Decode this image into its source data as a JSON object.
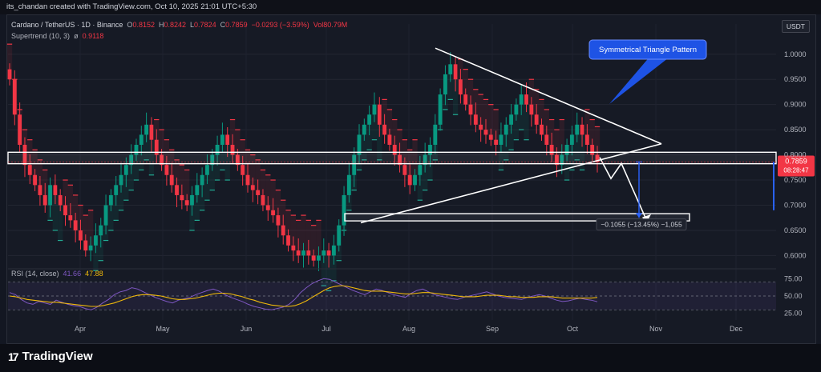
{
  "header": {
    "credit": "its_chandan created with TradingView.com, Oct 10, 2025 21:01 UTC+5:30"
  },
  "legend": {
    "symbol": "Cardano / TetherUS · 1D · Binance",
    "open_label": "O",
    "open": "0.8152",
    "high_label": "H",
    "high": "0.8242",
    "low_label": "L",
    "low": "0.7824",
    "close_label": "C",
    "close": "0.7859",
    "change": "−0.0293 (−3.59%)",
    "volume": "Vol80.79M",
    "supertrend_label": "Supertrend (10, 3)",
    "supertrend_sym": "ø",
    "supertrend_value": "0.9118"
  },
  "rsi_legend": {
    "label": "RSI (14, close)",
    "rsi": "41.66",
    "ma": "47.88"
  },
  "currency_badge": "USDT",
  "annotation": "Symmetrical Triangle Pattern",
  "measure_label": "−0.1055 (−13.45%) −1,055",
  "price_tag": {
    "price": "0.7859",
    "countdown": "08:28:47"
  },
  "footer": {
    "brand": "TradingView",
    "logo_glyph": "17"
  },
  "colors": {
    "up": "#089981",
    "down": "#f23645",
    "rsi": "#7e57c2",
    "rsi_ma": "#f0b90b",
    "bg": "#161a25",
    "accent": "#2962ff"
  },
  "chart_data": [
    {
      "type": "candlestick",
      "title": "Cardano / TetherUS · 1D · Binance",
      "y_ticks": [
        "1.0000",
        "0.9500",
        "0.9000",
        "0.8500",
        "0.8000",
        "0.7500",
        "0.7000",
        "0.6500",
        "0.6000"
      ],
      "ylim": [
        0.58,
        1.06
      ],
      "x_tick_labels": [
        "Apr",
        "May",
        "Jun",
        "Jul",
        "Aug",
        "Sep",
        "Oct",
        "Nov",
        "Dec"
      ],
      "grid": true,
      "closes_approx": [
        0.95,
        0.88,
        0.82,
        0.78,
        0.76,
        0.74,
        0.72,
        0.7,
        0.74,
        0.72,
        0.7,
        0.68,
        0.67,
        0.65,
        0.63,
        0.61,
        0.62,
        0.64,
        0.66,
        0.7,
        0.72,
        0.74,
        0.76,
        0.78,
        0.8,
        0.82,
        0.84,
        0.86,
        0.83,
        0.8,
        0.78,
        0.76,
        0.74,
        0.72,
        0.71,
        0.7,
        0.72,
        0.74,
        0.76,
        0.78,
        0.8,
        0.82,
        0.84,
        0.82,
        0.8,
        0.78,
        0.76,
        0.74,
        0.73,
        0.72,
        0.7,
        0.69,
        0.68,
        0.66,
        0.64,
        0.62,
        0.61,
        0.6,
        0.61,
        0.6,
        0.59,
        0.6,
        0.61,
        0.6,
        0.62,
        0.66,
        0.72,
        0.76,
        0.8,
        0.84,
        0.86,
        0.88,
        0.9,
        0.86,
        0.84,
        0.82,
        0.8,
        0.78,
        0.76,
        0.74,
        0.76,
        0.78,
        0.8,
        0.82,
        0.86,
        0.92,
        0.96,
        0.98,
        0.95,
        0.92,
        0.9,
        0.88,
        0.86,
        0.85,
        0.84,
        0.83,
        0.82,
        0.84,
        0.86,
        0.88,
        0.9,
        0.92,
        0.9,
        0.88,
        0.86,
        0.84,
        0.82,
        0.8,
        0.78,
        0.8,
        0.82,
        0.84,
        0.86,
        0.84,
        0.82,
        0.8,
        0.7859
      ],
      "support_zone": [
        0.7824,
        0.8052
      ],
      "target_zone": [
        0.672,
        0.68
      ],
      "triangle": {
        "upper_start": 1.012,
        "apex": 0.822,
        "lower_start": 0.665
      },
      "supertrend_value": 0.9118,
      "last_price": 0.7859
    },
    {
      "type": "line",
      "title": "RSI (14, close)",
      "y_ticks": [
        "75.00",
        "50.00",
        "25.00"
      ],
      "ylim": [
        20,
        80
      ],
      "series": [
        {
          "name": "RSI",
          "values": [
            55,
            52,
            45,
            40,
            38,
            42,
            40,
            38,
            44,
            41,
            38,
            36,
            35,
            32,
            30,
            34,
            40,
            45,
            52,
            56,
            58,
            62,
            60,
            56,
            52,
            48,
            45,
            42,
            40,
            44,
            46,
            48,
            52,
            55,
            58,
            60,
            57,
            52,
            48,
            45,
            42,
            38,
            35,
            33,
            31,
            30,
            32,
            34,
            38,
            45,
            55,
            62,
            68,
            72,
            75,
            74,
            70,
            66,
            62,
            58,
            55,
            52,
            56,
            60,
            58,
            55,
            52,
            50,
            48,
            54,
            58,
            60,
            56,
            52,
            50,
            48,
            46,
            45,
            48,
            50,
            52,
            54,
            56,
            53,
            50,
            48,
            47,
            46,
            45,
            48,
            50,
            52,
            50,
            47,
            44,
            42,
            43,
            45,
            47,
            45,
            44,
            41.66
          ]
        },
        {
          "name": "RSI-based MA",
          "values": [
            50,
            49,
            47,
            45,
            44,
            43,
            42,
            41,
            41,
            40,
            39,
            38,
            37,
            36,
            35,
            35,
            36,
            38,
            40,
            43,
            46,
            49,
            51,
            52,
            52,
            51,
            50,
            48,
            46,
            45,
            45,
            46,
            47,
            49,
            51,
            53,
            54,
            54,
            53,
            51,
            49,
            46,
            44,
            41,
            39,
            37,
            36,
            35,
            35,
            36,
            39,
            43,
            48,
            53,
            58,
            62,
            64,
            65,
            64,
            62,
            60,
            58,
            57,
            57,
            57,
            56,
            55,
            54,
            53,
            53,
            54,
            55,
            55,
            54,
            53,
            52,
            51,
            50,
            49,
            49,
            49,
            50,
            51,
            51,
            51,
            50,
            49,
            49,
            48,
            48,
            48,
            49,
            49,
            49,
            48,
            47,
            47,
            47,
            47,
            47,
            47,
            47.88
          ]
        }
      ]
    }
  ]
}
